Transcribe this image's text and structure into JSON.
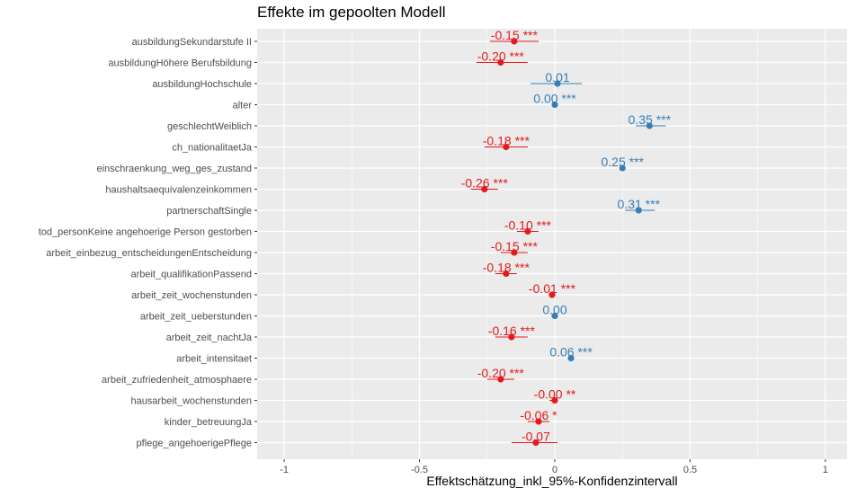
{
  "chart_data": {
    "type": "scatter",
    "title": "Effekte im gepoolten Modell",
    "xlabel": "Effektschätzung_inkl_95%-Konfidenzintervall",
    "ylabel": "",
    "xlim": [
      -1.1,
      1.08
    ],
    "xticks": [
      -1,
      -0.5,
      0,
      0.5,
      1
    ],
    "xtick_labels": [
      "-1",
      "-0.5",
      "0",
      "0.5",
      "1"
    ],
    "grid": true,
    "background": "#ebebeb",
    "colors": {
      "positive": "#377eb8",
      "negative": "#e41a1c"
    },
    "series": [
      {
        "categories": [
          "ausbildungSekundarstufe II",
          "ausbildungHöhere Berufsbildung",
          "ausbildungHochschule",
          "alter",
          "geschlechtWeiblich",
          "ch_nationalitaetJa",
          "einschraenkung_weg_ges_zustand",
          "haushaltsaequivalenzeinkommen",
          "partnerschaftSingle",
          "tod_personKeine angehoerige Person gestorben",
          "arbeit_einbezug_entscheidungenEntscheidung",
          "arbeit_qualifikationPassend",
          "arbeit_zeit_wochenstunden",
          "arbeit_zeit_ueberstunden",
          "arbeit_zeit_nachtJa",
          "arbeit_intensitaet",
          "arbeit_zufriedenheit_atmosphaere",
          "hausarbeit_wochenstunden",
          "kinder_betreuungJa",
          "pflege_angehoerigePflege"
        ],
        "values": [
          -0.15,
          -0.2,
          0.01,
          0.0,
          0.35,
          -0.18,
          0.25,
          -0.26,
          0.31,
          -0.1,
          -0.15,
          -0.18,
          -0.01,
          0.0,
          -0.16,
          0.06,
          -0.2,
          -0.0,
          -0.06,
          -0.07
        ],
        "ci_low": [
          -0.24,
          -0.29,
          -0.09,
          -0.005,
          0.3,
          -0.26,
          0.24,
          -0.31,
          0.26,
          -0.14,
          -0.2,
          -0.22,
          -0.02,
          -0.005,
          -0.22,
          0.05,
          -0.25,
          -0.02,
          -0.1,
          -0.16
        ],
        "ci_high": [
          -0.06,
          -0.1,
          0.1,
          0.005,
          0.41,
          -0.1,
          0.26,
          -0.21,
          0.37,
          -0.06,
          -0.1,
          -0.14,
          -0.005,
          0.005,
          -0.1,
          0.07,
          -0.15,
          0.0,
          -0.02,
          0.01
        ],
        "labels": [
          "-0.15 ***",
          "-0.20 ***",
          "0.01",
          "0.00 ***",
          "0.35 ***",
          "-0.18 ***",
          "0.25 ***",
          "-0.26 ***",
          "0.31 ***",
          "-0.10 ***",
          "-0.15 ***",
          "-0.18 ***",
          "-0.01 ***",
          "0.00",
          "-0.16 ***",
          "0.06 ***",
          "-0.20 ***",
          "-0.00 **",
          "-0.06 *",
          "-0.07"
        ],
        "sign": [
          "neg",
          "neg",
          "pos",
          "pos",
          "pos",
          "neg",
          "pos",
          "neg",
          "pos",
          "neg",
          "neg",
          "neg",
          "neg",
          "pos",
          "neg",
          "pos",
          "neg",
          "neg",
          "neg",
          "neg"
        ]
      }
    ]
  }
}
